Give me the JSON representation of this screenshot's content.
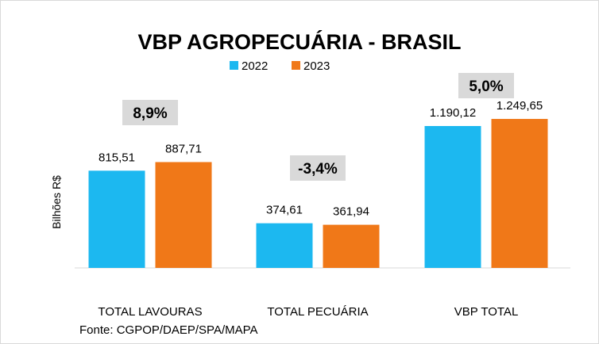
{
  "chart_data": {
    "type": "bar",
    "title": "VBP AGROPECUÁRIA - BRASIL",
    "ylabel": "Bilhões R$",
    "xlabel": "",
    "categories": [
      "TOTAL LAVOURAS",
      "TOTAL PECUÁRIA",
      "VBP TOTAL"
    ],
    "series": [
      {
        "name": "2022",
        "color": "#1cb8f0",
        "values": [
          815.51,
          374.61,
          1190.12
        ],
        "labels": [
          "815,51",
          "374,61",
          "1.190,12"
        ]
      },
      {
        "name": "2023",
        "color": "#f07818",
        "values": [
          887.71,
          361.94,
          1249.65
        ],
        "labels": [
          "887,71",
          "361,94",
          "1.249,65"
        ]
      }
    ],
    "annotations": [
      "8,9%",
      "-3,4%",
      "5,0%"
    ],
    "annotation_bg": "#d9d9d9",
    "ylim": [
      0,
      1250
    ],
    "legend": "top-center",
    "grid": false
  },
  "source": "Fonte: CGPOP/DAEP/SPA/MAPA"
}
